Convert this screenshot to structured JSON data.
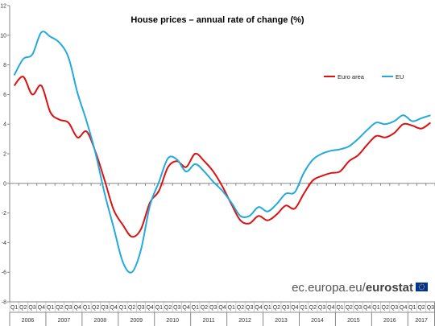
{
  "chart_data": {
    "type": "line",
    "title": "House prices – annual rate of change (%)",
    "xlabel": "",
    "ylabel": "",
    "ylim": [
      -8,
      12
    ],
    "yticks": [
      -8,
      -6,
      -4,
      -2,
      0,
      2,
      4,
      6,
      8,
      10,
      12
    ],
    "grid": false,
    "legend_position": "top-right",
    "quarters": [
      "Q1",
      "Q2",
      "Q3",
      "Q4"
    ],
    "years": [
      "2006",
      "2007",
      "2008",
      "2009",
      "2010",
      "2011",
      "2012",
      "2013",
      "2014",
      "2015",
      "2016",
      "2017"
    ],
    "x": [
      "2006Q1",
      "2006Q2",
      "2006Q3",
      "2006Q4",
      "2007Q1",
      "2007Q2",
      "2007Q3",
      "2007Q4",
      "2008Q1",
      "2008Q2",
      "2008Q3",
      "2008Q4",
      "2009Q1",
      "2009Q2",
      "2009Q3",
      "2009Q4",
      "2010Q1",
      "2010Q2",
      "2010Q3",
      "2010Q4",
      "2011Q1",
      "2011Q2",
      "2011Q3",
      "2011Q4",
      "2012Q1",
      "2012Q2",
      "2012Q3",
      "2012Q4",
      "2013Q1",
      "2013Q2",
      "2013Q3",
      "2013Q4",
      "2014Q1",
      "2014Q2",
      "2014Q3",
      "2014Q4",
      "2015Q1",
      "2015Q2",
      "2015Q3",
      "2015Q4",
      "2016Q1",
      "2016Q2",
      "2016Q3",
      "2016Q4",
      "2017Q1",
      "2017Q2",
      "2017Q3"
    ],
    "series": [
      {
        "name": "Euro area",
        "color": "#dd1111",
        "values": [
          6.6,
          7.2,
          6.0,
          6.6,
          4.8,
          4.3,
          4.1,
          3.1,
          3.5,
          2.1,
          0.2,
          -1.8,
          -2.8,
          -3.6,
          -3.1,
          -1.3,
          -0.5,
          1.1,
          1.5,
          1.1,
          2.0,
          1.5,
          0.8,
          -0.2,
          -1.4,
          -2.5,
          -2.7,
          -2.2,
          -2.5,
          -2.1,
          -1.5,
          -1.7,
          -0.7,
          0.2,
          0.5,
          0.7,
          0.8,
          1.5,
          1.9,
          2.6,
          3.2,
          3.1,
          3.4,
          4.0,
          3.9,
          3.7,
          4.1
        ]
      },
      {
        "name": "EU",
        "color": "#22aadd",
        "values": [
          7.3,
          8.4,
          8.7,
          10.2,
          9.9,
          9.5,
          8.5,
          6.1,
          4.2,
          2.0,
          -0.7,
          -3.0,
          -5.3,
          -6.0,
          -4.5,
          -1.5,
          0.1,
          1.7,
          1.6,
          0.8,
          1.3,
          0.8,
          0.1,
          -0.5,
          -1.3,
          -2.2,
          -2.2,
          -1.6,
          -1.9,
          -1.4,
          -0.7,
          -0.6,
          0.7,
          1.6,
          2.0,
          2.2,
          2.3,
          2.5,
          3.0,
          3.6,
          4.1,
          4.0,
          4.2,
          4.6,
          4.2,
          4.4,
          4.6
        ]
      }
    ]
  },
  "footer": {
    "source_prefix": "ec.europa.eu/",
    "source_brand": "eurostat"
  },
  "icons": {
    "eu_flag": "eu-flag-icon"
  }
}
